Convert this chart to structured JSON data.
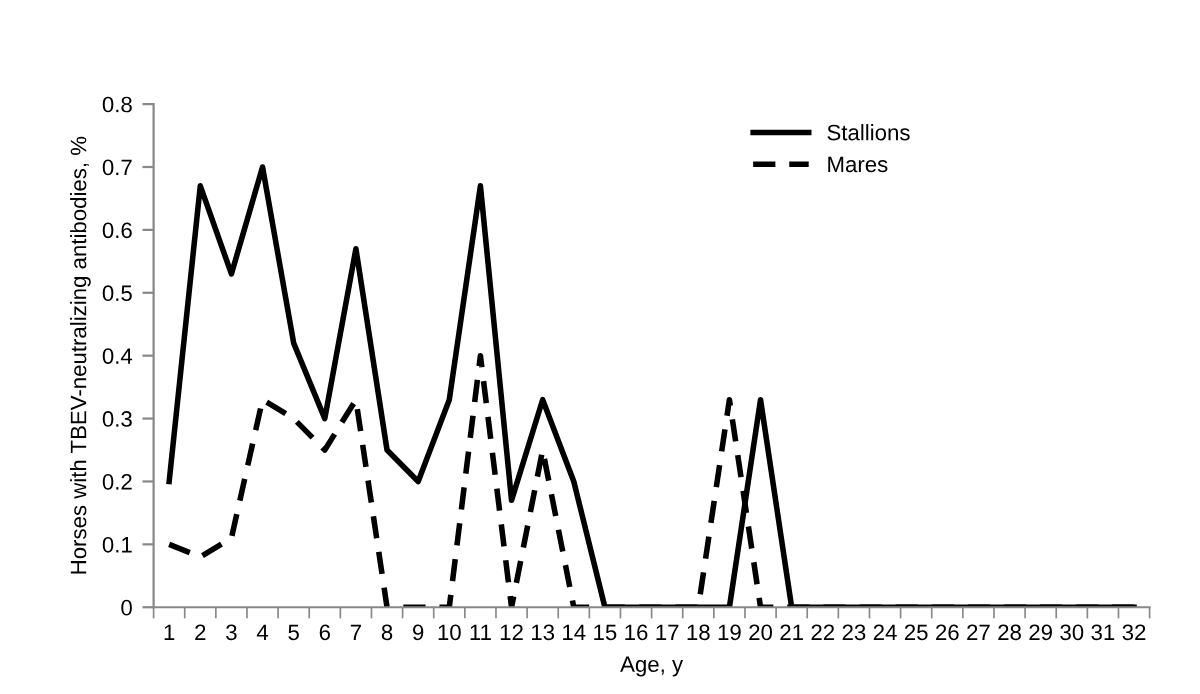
{
  "chart_data": {
    "type": "line",
    "xlabel": "Age, y",
    "ylabel": "Horses with TBEV-neutralizing antibodies, %",
    "categories": [
      "1",
      "2",
      "3",
      "4",
      "5",
      "6",
      "7",
      "8",
      "9",
      "10",
      "11",
      "12",
      "13",
      "14",
      "15",
      "16",
      "17",
      "18",
      "19",
      "20",
      "21",
      "22",
      "23",
      "24",
      "25",
      "26",
      "27",
      "28",
      "29",
      "30",
      "31",
      "32"
    ],
    "series": [
      {
        "name": "Stallions",
        "color": "#000000",
        "line_style": "solid",
        "values": [
          0.2,
          0.67,
          0.53,
          0.7,
          0.42,
          0.3,
          0.57,
          0.25,
          0.2,
          0.33,
          0.67,
          0.17,
          0.33,
          0.2,
          0,
          0,
          0,
          0,
          0,
          0.33,
          0,
          0,
          0,
          0,
          0,
          0,
          0,
          0,
          0,
          0,
          0,
          0
        ]
      },
      {
        "name": "Mares",
        "color": "#000000",
        "line_style": "dashed",
        "values": [
          0.1,
          0.08,
          0.11,
          0.33,
          0.3,
          0.25,
          0.33,
          0,
          0,
          0,
          0.4,
          0,
          0.25,
          0,
          0,
          0,
          0,
          0,
          0.33,
          0,
          0,
          0,
          0,
          0,
          0,
          0,
          0,
          0,
          0,
          0,
          0,
          0
        ]
      }
    ],
    "ylim": [
      0,
      0.8
    ],
    "yticks": [
      0,
      0.1,
      0.2,
      0.3,
      0.4,
      0.5,
      0.6,
      0.7,
      0.8
    ],
    "grid": false,
    "legend": "top right",
    "marker": "none"
  }
}
